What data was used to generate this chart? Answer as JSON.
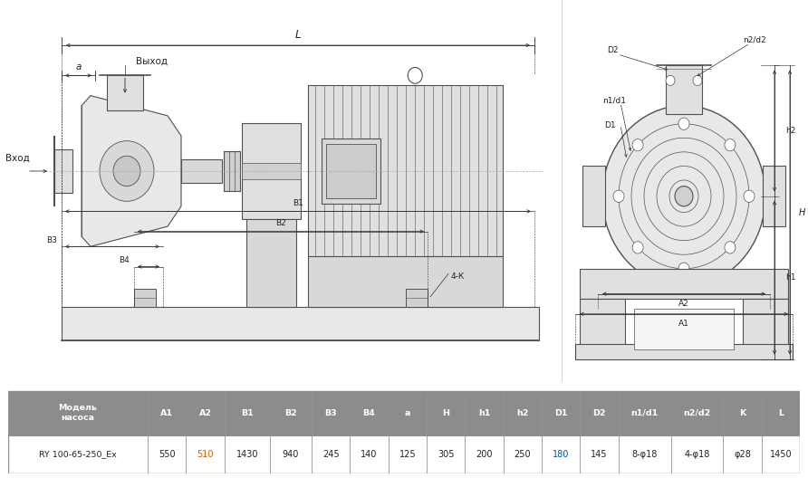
{
  "bg_color": "#ffffff",
  "table": {
    "header_bg": "#8c8c8c",
    "header_text_color": "#ffffff",
    "border_color": "#888888",
    "col_headers": [
      "Модель\nнасоса",
      "A1",
      "A2",
      "B1",
      "B2",
      "B3",
      "B4",
      "a",
      "H",
      "h1",
      "h2",
      "D1",
      "D2",
      "n1/d1",
      "n2/d2",
      "K",
      "L"
    ],
    "row_data": [
      "RY 100-65-250_Ex",
      "550",
      "510",
      "1430",
      "940",
      "245",
      "140",
      "125",
      "305",
      "200",
      "250",
      "180",
      "145",
      "8-φ18",
      "4-φ18",
      "φ28",
      "1450"
    ],
    "col_widths": [
      2.0,
      0.55,
      0.55,
      0.65,
      0.6,
      0.55,
      0.55,
      0.55,
      0.55,
      0.55,
      0.55,
      0.55,
      0.55,
      0.75,
      0.75,
      0.55,
      0.55
    ],
    "highlight_orange_cols": [
      2
    ],
    "highlight_blue_cols": [
      11
    ],
    "orange_color": "#d06000",
    "blue_color": "#0050a0"
  },
  "line_color": "#505050",
  "dim_color": "#303030"
}
